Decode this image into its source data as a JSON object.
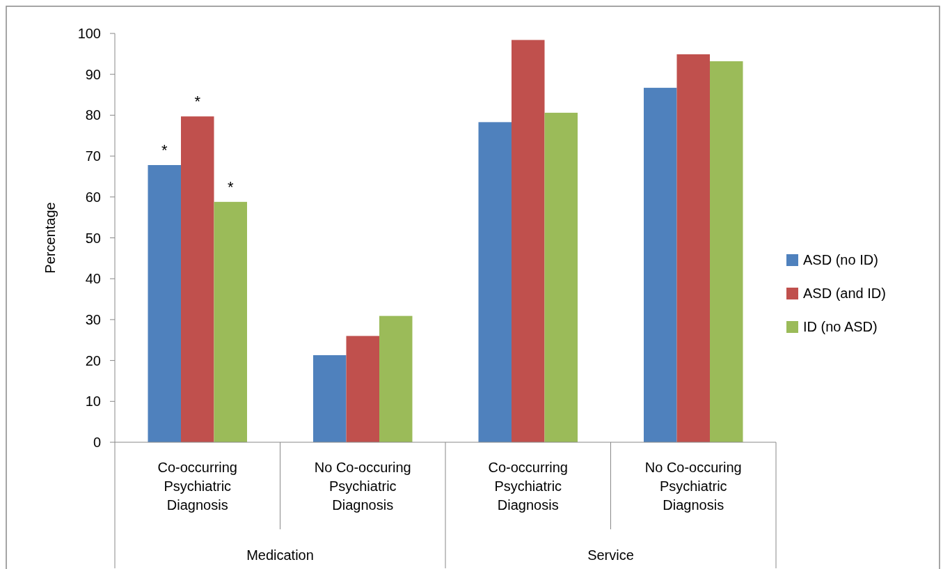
{
  "chart_data": {
    "type": "bar",
    "ylabel": "Percentage",
    "categories": [
      "Co-occurring Psychiatric Diagnosis",
      "No Co-occuring Psychiatric Diagnosis",
      "Co-occurring Psychiatric Diagnosis",
      "No Co-occuring Psychiatric Diagnosis"
    ],
    "annotations": [
      "Medication",
      "Service"
    ],
    "series": [
      {
        "name": "ASD (no ID)",
        "color": "#4f81bd",
        "values": [
          67.8,
          21.3,
          78.3,
          86.7
        ],
        "value_labels": [
          "*",
          null,
          null,
          null
        ]
      },
      {
        "name": "ASD (and ID)",
        "color": "#c0504d",
        "values": [
          79.7,
          26,
          98.4,
          94.9
        ],
        "value_labels": [
          "*",
          null,
          null,
          null
        ]
      },
      {
        "name": "ID (no ASD)",
        "color": "#9bbb59",
        "values": [
          58.8,
          30.9,
          80.6,
          93.2
        ],
        "value_labels": [
          "*",
          null,
          null,
          null
        ]
      }
    ],
    "ylim": [
      0,
      100
    ],
    "yticks": [
      0,
      10,
      20,
      30,
      40,
      50,
      60,
      70,
      80,
      90,
      100
    ],
    "grid": false,
    "legend": "right"
  }
}
